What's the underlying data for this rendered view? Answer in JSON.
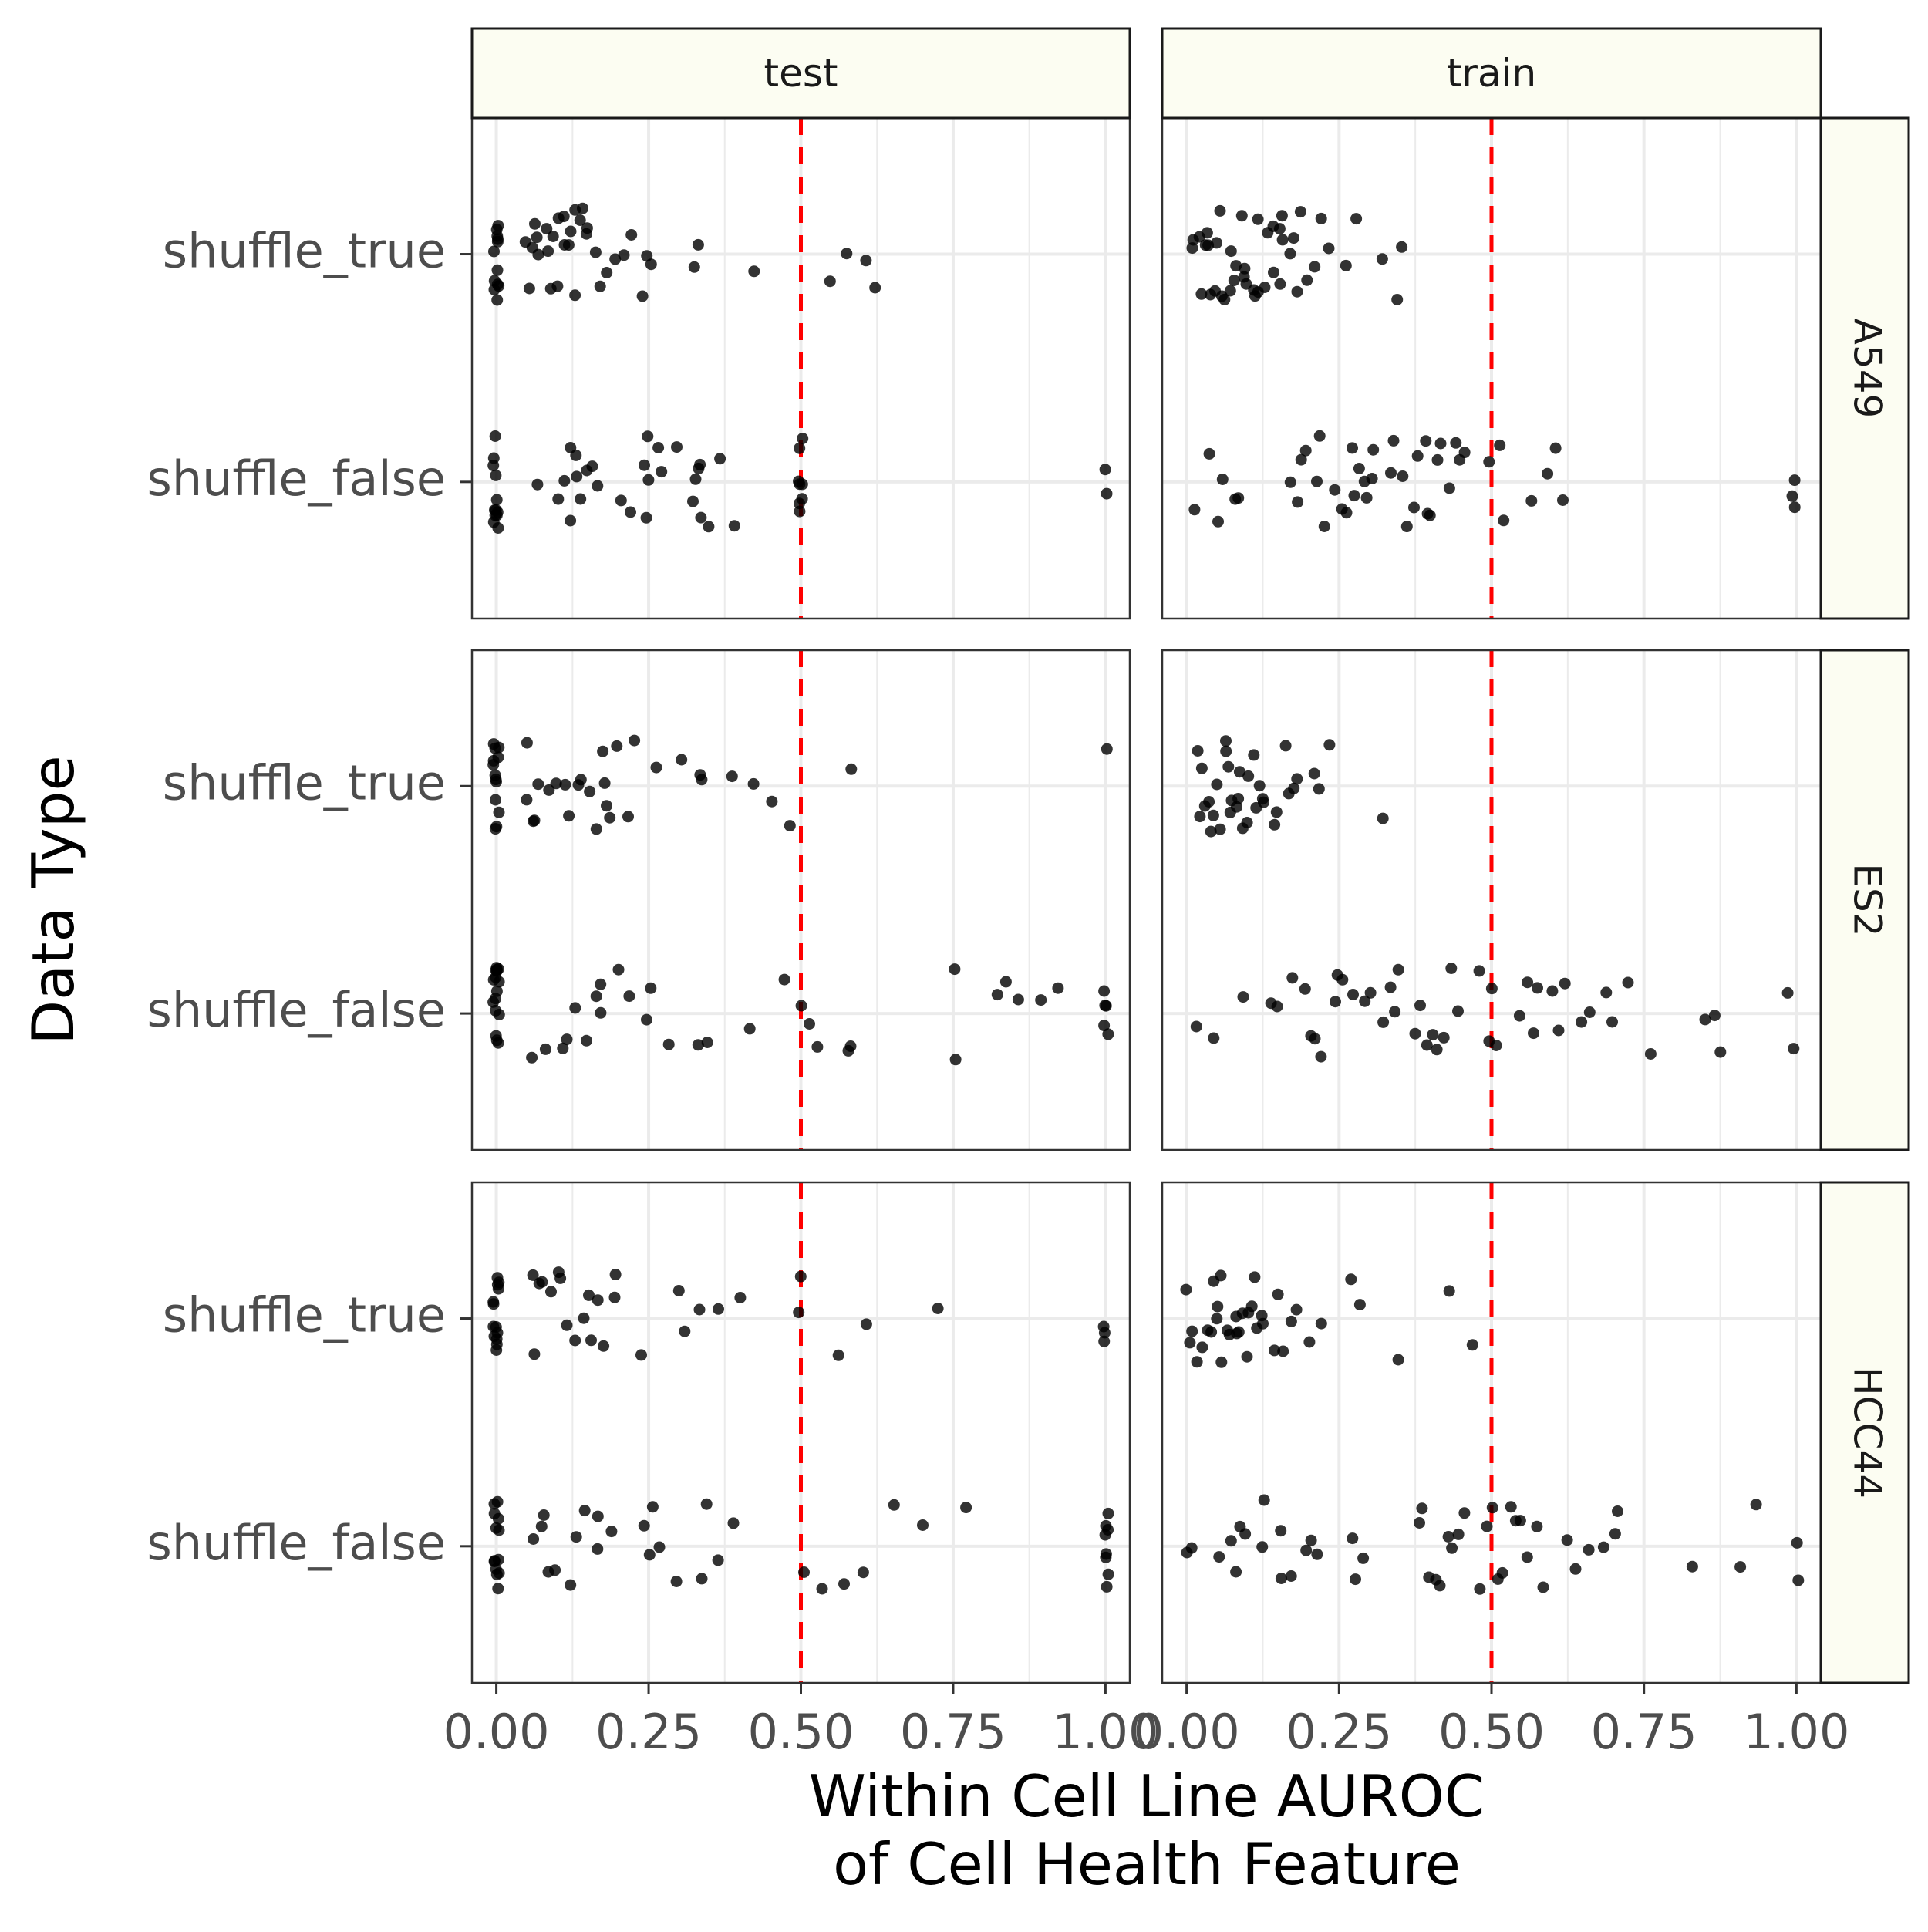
{
  "chart_data": {
    "type": "scatter",
    "subtype": "faceted jitter plot",
    "xlabel": "Within Cell Line AUROC\nof Cell Health Feature",
    "ylabel": "Data Type",
    "xlim": [
      -0.04,
      1.04
    ],
    "x_ticks": [
      "0.00",
      "0.25",
      "0.50",
      "0.75",
      "1.00"
    ],
    "y_categories": [
      "shuffle_true",
      "shuffle_false"
    ],
    "facet_columns": [
      "test",
      "train"
    ],
    "facet_rows": [
      "A549",
      "ES2",
      "HCC44"
    ],
    "reference_line": {
      "x": 0.5,
      "color": "#ff0000",
      "style": "dashed"
    },
    "grid": true,
    "colors": {
      "point": "#000000",
      "strip_fill": "#fcfdf2",
      "ref_line": "#ff0000"
    },
    "panels": [
      {
        "row": "A549",
        "col": "test",
        "shuffle_true": [
          0,
          0,
          0,
          0,
          0,
          0,
          0,
          0,
          0,
          0,
          0,
          0,
          0.05,
          0.05,
          0.06,
          0.06,
          0.07,
          0.07,
          0.08,
          0.08,
          0.09,
          0.09,
          0.1,
          0.1,
          0.11,
          0.11,
          0.12,
          0.12,
          0.13,
          0.13,
          0.14,
          0.14,
          0.15,
          0.15,
          0.16,
          0.17,
          0.18,
          0.2,
          0.21,
          0.22,
          0.24,
          0.25,
          0.25,
          0.33,
          0.33,
          0.42,
          0.55,
          0.57,
          0.61,
          0.62
        ],
        "shuffle_false": [
          0,
          0,
          0,
          0,
          0,
          0,
          0,
          0,
          0,
          0,
          0,
          0,
          0.07,
          0.1,
          0.11,
          0.12,
          0.12,
          0.13,
          0.13,
          0.14,
          0.15,
          0.16,
          0.17,
          0.2,
          0.22,
          0.24,
          0.25,
          0.25,
          0.25,
          0.27,
          0.27,
          0.3,
          0.32,
          0.33,
          0.33,
          0.33,
          0.34,
          0.35,
          0.37,
          0.39,
          0.5,
          0.5,
          0.5,
          0.5,
          0.5,
          0.5,
          0.5,
          0.5,
          1,
          1
        ]
      },
      {
        "row": "A549",
        "col": "train",
        "shuffle_true": [
          0.01,
          0.01,
          0.02,
          0.02,
          0.03,
          0.03,
          0.04,
          0.04,
          0.05,
          0.05,
          0.05,
          0.06,
          0.06,
          0.07,
          0.07,
          0.08,
          0.08,
          0.09,
          0.09,
          0.1,
          0.1,
          0.11,
          0.11,
          0.12,
          0.12,
          0.13,
          0.13,
          0.14,
          0.14,
          0.15,
          0.15,
          0.16,
          0.16,
          0.17,
          0.18,
          0.18,
          0.19,
          0.2,
          0.21,
          0.22,
          0.23,
          0.26,
          0.28,
          0.32,
          0.35,
          0.35
        ],
        "shuffle_false": [
          0.01,
          0.04,
          0.05,
          0.06,
          0.08,
          0.08,
          0.17,
          0.18,
          0.19,
          0.2,
          0.21,
          0.22,
          0.23,
          0.24,
          0.25,
          0.26,
          0.27,
          0.27,
          0.28,
          0.29,
          0.3,
          0.3,
          0.31,
          0.33,
          0.34,
          0.35,
          0.36,
          0.37,
          0.38,
          0.39,
          0.4,
          0.4,
          0.41,
          0.42,
          0.43,
          0.44,
          0.45,
          0.46,
          0.5,
          0.51,
          0.52,
          0.57,
          0.59,
          0.61,
          0.62,
          0.99,
          1.0,
          1.0
        ]
      },
      {
        "row": "ES2",
        "col": "test",
        "shuffle_true": [
          0,
          0,
          0,
          0,
          0,
          0,
          0,
          0,
          0,
          0,
          0,
          0,
          0,
          0.05,
          0.05,
          0.06,
          0.06,
          0.07,
          0.09,
          0.1,
          0.11,
          0.12,
          0.13,
          0.14,
          0.15,
          0.16,
          0.17,
          0.18,
          0.18,
          0.19,
          0.2,
          0.22,
          0.23,
          0.26,
          0.3,
          0.33,
          0.34,
          0.39,
          0.42,
          0.45,
          0.48,
          0.58,
          1.0
        ],
        "shuffle_false": [
          0,
          0,
          0,
          0,
          0,
          0,
          0,
          0,
          0,
          0,
          0,
          0,
          0,
          0,
          0,
          0,
          0.06,
          0.08,
          0.11,
          0.12,
          0.13,
          0.15,
          0.16,
          0.17,
          0.17,
          0.2,
          0.22,
          0.25,
          0.25,
          0.28,
          0.33,
          0.35,
          0.42,
          0.47,
          0.5,
          0.51,
          0.53,
          0.58,
          0.58,
          0.75,
          0.75,
          0.82,
          0.84,
          0.86,
          0.89,
          0.92,
          1,
          1,
          1,
          1,
          1
        ]
      },
      {
        "row": "ES2",
        "col": "train",
        "shuffle_true": [
          0.02,
          0.02,
          0.03,
          0.03,
          0.04,
          0.04,
          0.04,
          0.05,
          0.05,
          0.06,
          0.06,
          0.07,
          0.07,
          0.07,
          0.08,
          0.08,
          0.09,
          0.09,
          0.1,
          0.1,
          0.11,
          0.11,
          0.12,
          0.12,
          0.13,
          0.14,
          0.15,
          0.16,
          0.17,
          0.18,
          0.18,
          0.21,
          0.22,
          0.23,
          0.32
        ],
        "shuffle_false": [
          0.02,
          0.04,
          0.09,
          0.14,
          0.15,
          0.17,
          0.19,
          0.2,
          0.21,
          0.22,
          0.24,
          0.25,
          0.26,
          0.27,
          0.29,
          0.3,
          0.32,
          0.33,
          0.34,
          0.35,
          0.37,
          0.38,
          0.39,
          0.4,
          0.41,
          0.42,
          0.43,
          0.45,
          0.48,
          0.5,
          0.5,
          0.51,
          0.55,
          0.56,
          0.57,
          0.58,
          0.6,
          0.61,
          0.62,
          0.65,
          0.66,
          0.69,
          0.7,
          0.72,
          0.76,
          0.85,
          0.87,
          0.88,
          0.99,
          1.0
        ]
      },
      {
        "row": "HCC44",
        "col": "test",
        "shuffle_true": [
          0,
          0,
          0,
          0,
          0,
          0,
          0,
          0,
          0,
          0,
          0,
          0,
          0,
          0.06,
          0.06,
          0.07,
          0.08,
          0.09,
          0.1,
          0.11,
          0.12,
          0.13,
          0.14,
          0.15,
          0.16,
          0.17,
          0.18,
          0.19,
          0.2,
          0.24,
          0.3,
          0.31,
          0.33,
          0.36,
          0.4,
          0.5,
          0.5,
          0.56,
          0.61,
          0.72,
          1,
          1,
          1
        ],
        "shuffle_false": [
          0,
          0,
          0,
          0,
          0,
          0,
          0,
          0,
          0,
          0,
          0,
          0,
          0,
          0.06,
          0.07,
          0.08,
          0.09,
          0.1,
          0.12,
          0.13,
          0.15,
          0.17,
          0.17,
          0.19,
          0.24,
          0.25,
          0.26,
          0.27,
          0.3,
          0.34,
          0.35,
          0.36,
          0.39,
          0.5,
          0.53,
          0.57,
          0.6,
          0.65,
          0.7,
          0.77,
          1,
          1,
          1,
          1,
          1,
          1,
          1,
          1
        ]
      },
      {
        "row": "HCC44",
        "col": "train",
        "shuffle_true": [
          0,
          0.01,
          0.01,
          0.02,
          0.03,
          0.03,
          0.04,
          0.04,
          0.05,
          0.05,
          0.06,
          0.06,
          0.07,
          0.07,
          0.08,
          0.08,
          0.09,
          0.09,
          0.1,
          0.1,
          0.11,
          0.11,
          0.12,
          0.12,
          0.13,
          0.14,
          0.15,
          0.16,
          0.17,
          0.18,
          0.2,
          0.22,
          0.27,
          0.28,
          0.35,
          0.43,
          0.47
        ],
        "shuffle_false": [
          0,
          0.01,
          0.05,
          0.07,
          0.08,
          0.09,
          0.1,
          0.12,
          0.13,
          0.15,
          0.16,
          0.17,
          0.2,
          0.2,
          0.21,
          0.27,
          0.28,
          0.29,
          0.38,
          0.39,
          0.4,
          0.41,
          0.42,
          0.43,
          0.44,
          0.45,
          0.46,
          0.48,
          0.49,
          0.5,
          0.51,
          0.52,
          0.53,
          0.54,
          0.55,
          0.56,
          0.57,
          0.58,
          0.62,
          0.64,
          0.66,
          0.68,
          0.7,
          0.71,
          0.83,
          0.91,
          0.93,
          1.0,
          1.0
        ]
      }
    ]
  }
}
